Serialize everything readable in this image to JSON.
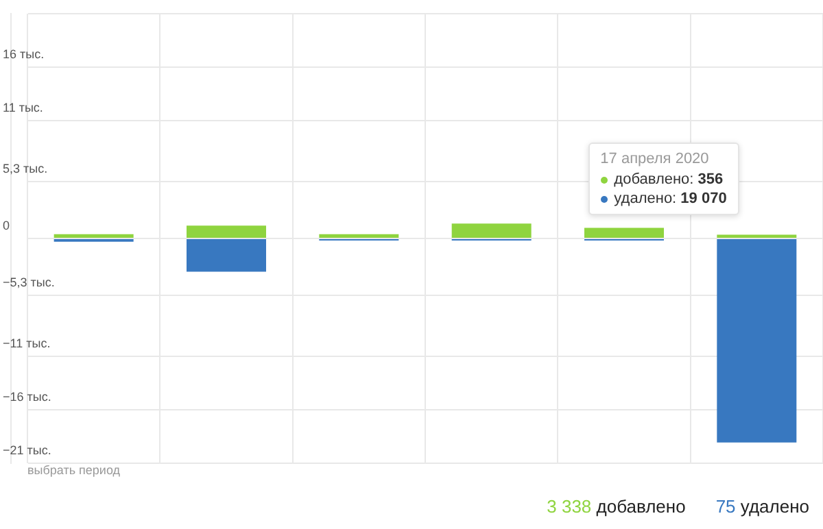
{
  "chart_data": {
    "type": "bar",
    "stacked": true,
    "categories": [
      null,
      null,
      null,
      null,
      null,
      null
    ],
    "series": [
      {
        "color": "#8fd43f",
        "values": [
          0.4,
          1.2,
          0.4,
          1.4,
          1.0,
          0.356
        ]
      },
      {
        "color": "#3878c0",
        "values": [
          -0.3,
          -3.1,
          -0.2,
          -0.2,
          -0.2,
          -19.07
        ]
      }
    ],
    "ylim": [
      -21,
      21
    ],
    "yticks": [
      {
        "value": -21,
        "label": "−21 тыс."
      },
      {
        "value": -16,
        "label": "−16 тыс."
      },
      {
        "value": -11,
        "label": "−11 тыс."
      },
      {
        "value": -5.3,
        "label": "−5,3 тыс."
      },
      0,
      {
        "value": 5.3,
        "label": "5,3 тыс."
      },
      {
        "value": 11,
        "label": "11 тыс."
      },
      {
        "value": 16,
        "label": "16 тыс."
      },
      {
        "value": 21,
        "label": null
      }
    ],
    "grid": true,
    "legend": false,
    "annotations": [
      "17 апреля 2020",
      "добавлено: 356",
      "удалено: 19 070",
      "выбрать период",
      "3 338 добавлено",
      "75 удалено"
    ]
  }
}
